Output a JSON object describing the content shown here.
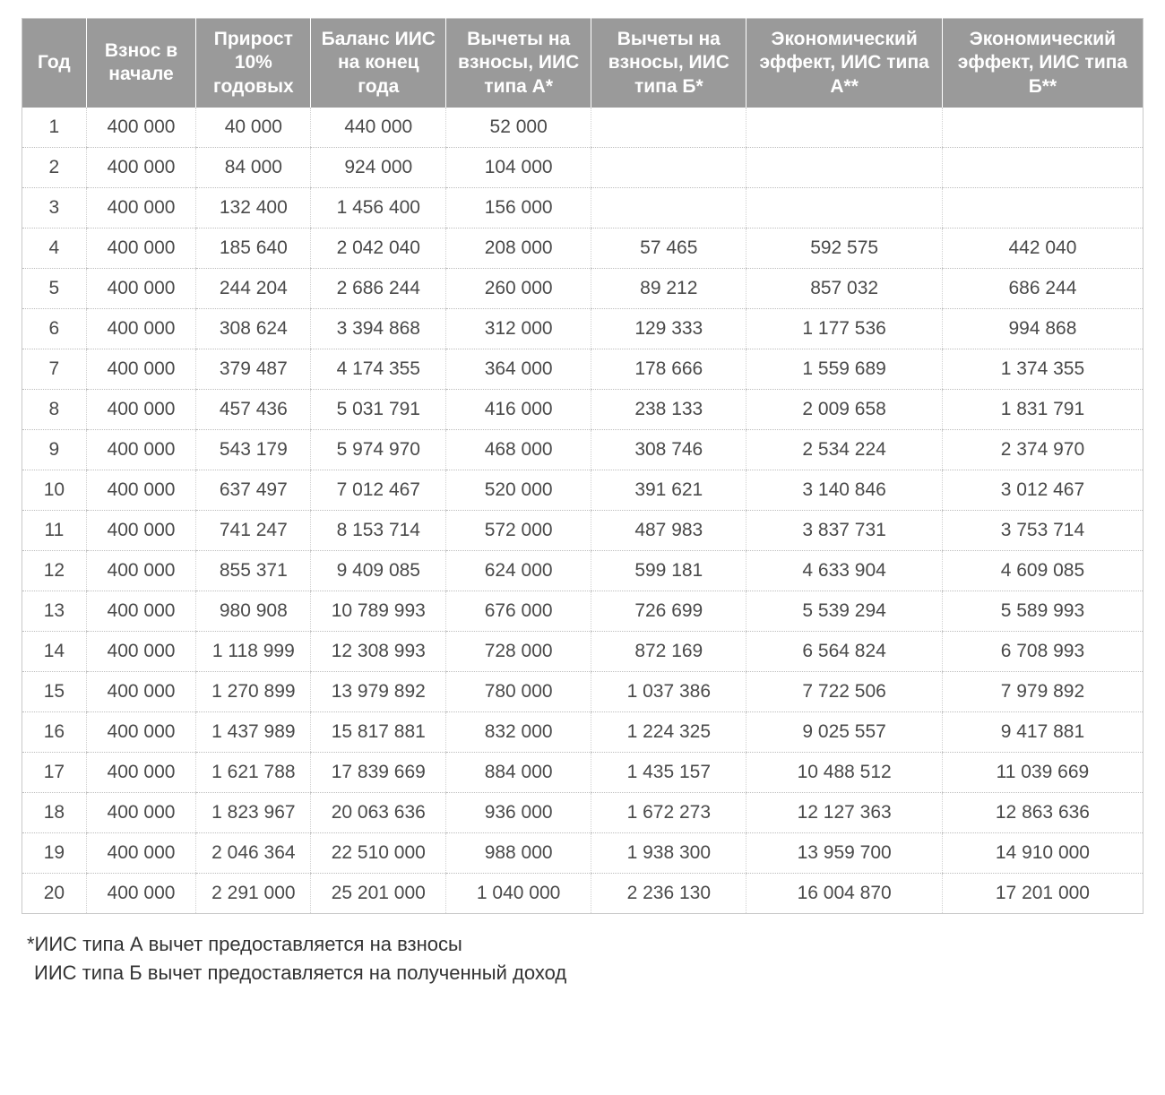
{
  "table": {
    "type": "table",
    "header_bg": "#9a9a9a",
    "header_fg": "#ffffff",
    "cell_fg": "#4a4a4a",
    "border_color": "#c9c9c9",
    "dotted_color": "#bdbdbd",
    "font_family": "Helvetica Neue",
    "header_fontsize_pt": 16,
    "cell_fontsize_pt": 16,
    "columns": [
      {
        "key": "year",
        "label": "Год",
        "width": "5%"
      },
      {
        "key": "deposit",
        "label": "Взнос в начале",
        "width": "9.5%"
      },
      {
        "key": "growth",
        "label": "Прирост 10% годовых",
        "width": "10%"
      },
      {
        "key": "balance",
        "label": "Баланс ИИС на конец года",
        "width": "12%"
      },
      {
        "key": "deductA",
        "label": "Вычеты на взносы, ИИС типа А*",
        "width": "13%"
      },
      {
        "key": "deductB",
        "label": "Вычеты на взносы, ИИС типа Б*",
        "width": "14%"
      },
      {
        "key": "effectA",
        "label": "Экономический эффект, ИИС типа А**",
        "width": "18%"
      },
      {
        "key": "effectB",
        "label": "Экономический эффект, ИИС типа Б**",
        "width": "18.5%"
      }
    ],
    "rows": [
      {
        "year": "1",
        "deposit": "400 000",
        "growth": "40 000",
        "balance": "440 000",
        "deductA": "52 000",
        "deductB": "",
        "effectA": "",
        "effectB": ""
      },
      {
        "year": "2",
        "deposit": "400 000",
        "growth": "84 000",
        "balance": "924 000",
        "deductA": "104 000",
        "deductB": "",
        "effectA": "",
        "effectB": ""
      },
      {
        "year": "3",
        "deposit": "400 000",
        "growth": "132 400",
        "balance": "1 456 400",
        "deductA": "156 000",
        "deductB": "",
        "effectA": "",
        "effectB": ""
      },
      {
        "year": "4",
        "deposit": "400 000",
        "growth": "185 640",
        "balance": "2 042 040",
        "deductA": "208 000",
        "deductB": "57 465",
        "effectA": "592 575",
        "effectB": "442 040"
      },
      {
        "year": "5",
        "deposit": "400 000",
        "growth": "244 204",
        "balance": "2 686 244",
        "deductA": "260 000",
        "deductB": "89 212",
        "effectA": "857 032",
        "effectB": "686 244"
      },
      {
        "year": "6",
        "deposit": "400 000",
        "growth": "308 624",
        "balance": "3 394 868",
        "deductA": "312 000",
        "deductB": "129 333",
        "effectA": "1 177 536",
        "effectB": "994 868"
      },
      {
        "year": "7",
        "deposit": "400 000",
        "growth": "379 487",
        "balance": "4 174 355",
        "deductA": "364 000",
        "deductB": "178 666",
        "effectA": "1 559 689",
        "effectB": "1 374 355"
      },
      {
        "year": "8",
        "deposit": "400 000",
        "growth": "457 436",
        "balance": "5 031 791",
        "deductA": "416 000",
        "deductB": "238 133",
        "effectA": "2 009 658",
        "effectB": "1 831 791"
      },
      {
        "year": "9",
        "deposit": "400 000",
        "growth": "543 179",
        "balance": "5 974 970",
        "deductA": "468 000",
        "deductB": "308 746",
        "effectA": "2 534 224",
        "effectB": "2 374 970"
      },
      {
        "year": "10",
        "deposit": "400 000",
        "growth": "637 497",
        "balance": "7 012 467",
        "deductA": "520 000",
        "deductB": "391 621",
        "effectA": "3 140 846",
        "effectB": "3 012 467"
      },
      {
        "year": "11",
        "deposit": "400 000",
        "growth": "741 247",
        "balance": "8 153 714",
        "deductA": "572 000",
        "deductB": "487 983",
        "effectA": "3 837 731",
        "effectB": "3 753 714"
      },
      {
        "year": "12",
        "deposit": "400 000",
        "growth": "855 371",
        "balance": "9 409 085",
        "deductA": "624 000",
        "deductB": "599 181",
        "effectA": "4 633 904",
        "effectB": "4 609 085"
      },
      {
        "year": "13",
        "deposit": "400 000",
        "growth": "980 908",
        "balance": "10 789 993",
        "deductA": "676 000",
        "deductB": "726 699",
        "effectA": "5 539 294",
        "effectB": "5 589 993"
      },
      {
        "year": "14",
        "deposit": "400 000",
        "growth": "1 118 999",
        "balance": "12 308 993",
        "deductA": "728 000",
        "deductB": "872 169",
        "effectA": "6 564 824",
        "effectB": "6 708 993"
      },
      {
        "year": "15",
        "deposit": "400 000",
        "growth": "1 270 899",
        "balance": "13 979 892",
        "deductA": "780 000",
        "deductB": "1 037 386",
        "effectA": "7 722 506",
        "effectB": "7 979 892"
      },
      {
        "year": "16",
        "deposit": "400 000",
        "growth": "1 437 989",
        "balance": "15 817 881",
        "deductA": "832 000",
        "deductB": "1 224 325",
        "effectA": "9 025 557",
        "effectB": "9 417 881"
      },
      {
        "year": "17",
        "deposit": "400 000",
        "growth": "1 621 788",
        "balance": "17 839 669",
        "deductA": "884 000",
        "deductB": "1 435 157",
        "effectA": "10 488 512",
        "effectB": "11 039 669"
      },
      {
        "year": "18",
        "deposit": "400 000",
        "growth": "1 823 967",
        "balance": "20 063 636",
        "deductA": "936 000",
        "deductB": "1 672 273",
        "effectA": "12 127 363",
        "effectB": "12 863 636"
      },
      {
        "year": "19",
        "deposit": "400 000",
        "growth": "2 046 364",
        "balance": "22 510 000",
        "deductA": "988 000",
        "deductB": "1 938 300",
        "effectA": "13 959 700",
        "effectB": "14 910 000"
      },
      {
        "year": "20",
        "deposit": "400 000",
        "growth": "2 291 000",
        "balance": "25 201 000",
        "deductA": "1 040 000",
        "deductB": "2 236 130",
        "effectA": "16 004 870",
        "effectB": "17 201 000"
      }
    ]
  },
  "footnotes": {
    "line1": "*ИИС типа А вычет предоставляется на взносы",
    "line2": "ИИС типа Б вычет предоставляется на полученный доход"
  }
}
